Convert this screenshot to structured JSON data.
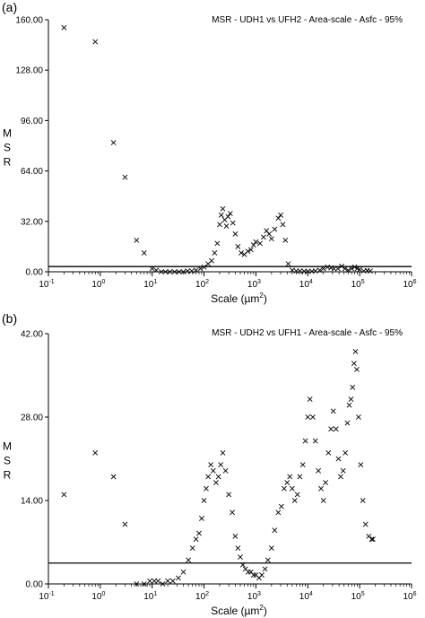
{
  "figure": {
    "panels": [
      {
        "label": "(a)",
        "title": "MSR - UDH1 vs UFH2 - Area-scale - Asfc - 95%"
      },
      {
        "label": "(b)",
        "title": "MSR - UDH2 vs UFH1 - Area-scale - Asfc - 95%"
      }
    ]
  },
  "chart_data": [
    {
      "type": "scatter",
      "panel_label": "(a)",
      "title": "MSR - UDH1 vs UFH2 - Area-scale - Asfc - 95%",
      "xlabel": "Scale (µm²)",
      "ylabel": "MSR",
      "x_scale": "log",
      "xlim": [
        0.1,
        1000000
      ],
      "ylim": [
        0,
        160
      ],
      "x_tick_exponents": [
        -1,
        0,
        1,
        2,
        3,
        4,
        5,
        6
      ],
      "y_ticks": [
        "0.00",
        "32.00",
        "64.00",
        "96.00",
        "128.00",
        "160.00"
      ],
      "y_tick_values": [
        0,
        32,
        64,
        96,
        128,
        160
      ],
      "grid": false,
      "marker": "x",
      "threshold": 3.3,
      "points": [
        [
          0.2,
          155
        ],
        [
          0.8,
          146
        ],
        [
          1.8,
          82
        ],
        [
          3,
          60
        ],
        [
          5,
          20
        ],
        [
          7,
          12
        ],
        [
          10,
          2
        ],
        [
          12,
          1
        ],
        [
          15,
          0
        ],
        [
          18,
          0
        ],
        [
          22,
          0
        ],
        [
          27,
          0
        ],
        [
          33,
          0
        ],
        [
          40,
          0
        ],
        [
          48,
          0.5
        ],
        [
          58,
          0.5
        ],
        [
          70,
          1
        ],
        [
          85,
          2
        ],
        [
          100,
          3
        ],
        [
          120,
          5
        ],
        [
          140,
          7
        ],
        [
          160,
          12
        ],
        [
          180,
          18
        ],
        [
          200,
          30
        ],
        [
          215,
          36
        ],
        [
          230,
          40
        ],
        [
          250,
          33
        ],
        [
          270,
          29
        ],
        [
          290,
          35
        ],
        [
          320,
          37
        ],
        [
          360,
          31
        ],
        [
          400,
          24
        ],
        [
          450,
          16
        ],
        [
          520,
          12
        ],
        [
          600,
          11
        ],
        [
          700,
          13
        ],
        [
          800,
          14
        ],
        [
          900,
          17
        ],
        [
          1000,
          19
        ],
        [
          1200,
          18
        ],
        [
          1400,
          22
        ],
        [
          1600,
          26
        ],
        [
          1800,
          24
        ],
        [
          2000,
          21
        ],
        [
          2300,
          27
        ],
        [
          2700,
          34
        ],
        [
          3000,
          36
        ],
        [
          3300,
          30
        ],
        [
          3700,
          20
        ],
        [
          4200,
          5
        ],
        [
          5000,
          1
        ],
        [
          6000,
          0.5
        ],
        [
          7000,
          0.5
        ],
        [
          8500,
          0.3
        ],
        [
          10000,
          0.3
        ],
        [
          12000,
          0.3
        ],
        [
          14000,
          0.5
        ],
        [
          17000,
          1
        ],
        [
          20000,
          2
        ],
        [
          24000,
          3
        ],
        [
          28000,
          2.5
        ],
        [
          32000,
          2
        ],
        [
          38000,
          2
        ],
        [
          45000,
          3.5
        ],
        [
          52000,
          2
        ],
        [
          60000,
          1
        ],
        [
          70000,
          2
        ],
        [
          80000,
          3
        ],
        [
          90000,
          2
        ],
        [
          100000,
          1.5
        ],
        [
          120000,
          0.5
        ],
        [
          140000,
          0.8
        ],
        [
          160000,
          0.5
        ]
      ]
    },
    {
      "type": "scatter",
      "panel_label": "(b)",
      "title": "MSR - UDH2 vs UFH1 - Area-scale - Asfc - 95%",
      "xlabel": "Scale (µm²)",
      "ylabel": "MSR",
      "x_scale": "log",
      "xlim": [
        0.1,
        1000000
      ],
      "ylim": [
        0,
        42
      ],
      "x_tick_exponents": [
        -1,
        0,
        1,
        2,
        3,
        4,
        5,
        6
      ],
      "y_ticks": [
        "0.00",
        "14.00",
        "28.00",
        "42.00"
      ],
      "y_tick_values": [
        0,
        14,
        28,
        42
      ],
      "grid": false,
      "marker": "x",
      "threshold": 3.5,
      "points": [
        [
          0.2,
          15
        ],
        [
          0.8,
          22
        ],
        [
          1.8,
          18
        ],
        [
          3,
          10
        ],
        [
          5,
          0
        ],
        [
          7,
          0
        ],
        [
          9,
          0.5
        ],
        [
          11,
          0.5
        ],
        [
          13,
          0.5
        ],
        [
          16,
          0
        ],
        [
          20,
          0.5
        ],
        [
          25,
          0.5
        ],
        [
          32,
          1
        ],
        [
          40,
          2
        ],
        [
          50,
          4
        ],
        [
          60,
          6
        ],
        [
          70,
          7.5
        ],
        [
          80,
          8.5
        ],
        [
          90,
          11
        ],
        [
          100,
          14
        ],
        [
          110,
          16
        ],
        [
          120,
          18
        ],
        [
          135,
          20
        ],
        [
          150,
          19
        ],
        [
          170,
          17
        ],
        [
          190,
          18
        ],
        [
          210,
          20
        ],
        [
          230,
          22
        ],
        [
          260,
          19
        ],
        [
          300,
          15
        ],
        [
          350,
          12
        ],
        [
          400,
          8
        ],
        [
          450,
          6
        ],
        [
          500,
          4.5
        ],
        [
          560,
          3.2
        ],
        [
          630,
          2.5
        ],
        [
          710,
          2
        ],
        [
          800,
          2
        ],
        [
          900,
          1.5
        ],
        [
          1000,
          1.5
        ],
        [
          1150,
          1
        ],
        [
          1300,
          1.5
        ],
        [
          1500,
          2.5
        ],
        [
          1700,
          4
        ],
        [
          2000,
          6
        ],
        [
          2300,
          9
        ],
        [
          2700,
          12
        ],
        [
          3100,
          13
        ],
        [
          3500,
          16
        ],
        [
          4000,
          17
        ],
        [
          4500,
          18
        ],
        [
          5000,
          16
        ],
        [
          5600,
          14
        ],
        [
          6300,
          15
        ],
        [
          7000,
          18
        ],
        [
          8000,
          20
        ],
        [
          9000,
          24
        ],
        [
          10000,
          28
        ],
        [
          11000,
          31
        ],
        [
          12500,
          28
        ],
        [
          14000,
          24
        ],
        [
          16000,
          19
        ],
        [
          18000,
          16
        ],
        [
          20000,
          14
        ],
        [
          22000,
          17
        ],
        [
          25000,
          22
        ],
        [
          28000,
          26
        ],
        [
          31000,
          29
        ],
        [
          35000,
          26
        ],
        [
          39000,
          21
        ],
        [
          43000,
          18
        ],
        [
          48000,
          19
        ],
        [
          53000,
          22
        ],
        [
          58000,
          27
        ],
        [
          63000,
          30
        ],
        [
          68000,
          31
        ],
        [
          73000,
          33
        ],
        [
          78000,
          37
        ],
        [
          83000,
          39
        ],
        [
          88000,
          36
        ],
        [
          95000,
          28
        ],
        [
          105000,
          20
        ],
        [
          115000,
          14
        ],
        [
          130000,
          10
        ],
        [
          150000,
          8
        ],
        [
          170000,
          7.5
        ],
        [
          180000,
          7.5
        ]
      ]
    }
  ]
}
